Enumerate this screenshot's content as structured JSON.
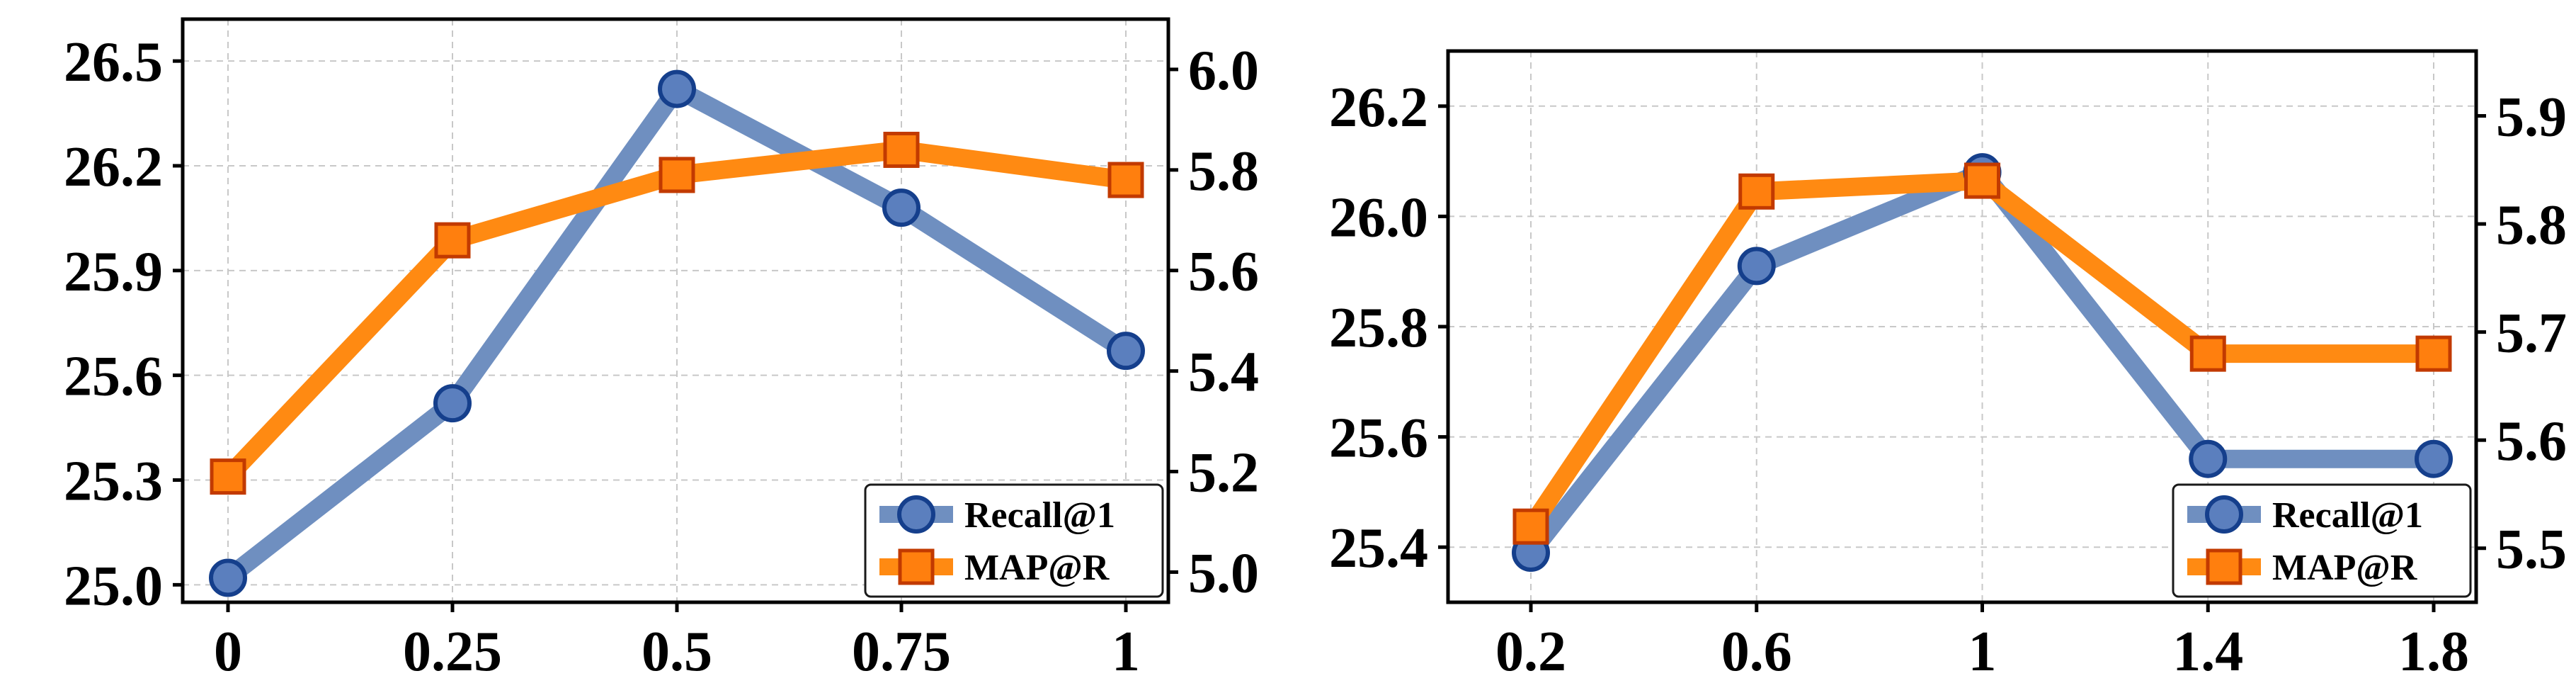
{
  "colors": {
    "recall": "#6f8fc0",
    "recall_marker_fill": "#5b7fbe",
    "recall_marker_edge": "#153f8c",
    "map": "#ff8a12",
    "map_marker_fill": "#ff7f0e",
    "map_marker_edge": "#c23a00",
    "grid": "#c8c8c8",
    "axes": "#000000"
  },
  "chart_data": [
    {
      "type": "line",
      "title": "",
      "xlabel": "",
      "ylabel": "",
      "ylabel_right": "",
      "categories": [
        "0",
        "0.25",
        "0.5",
        "0.75",
        "1"
      ],
      "ylim": [
        24.95,
        26.62
      ],
      "ylim_right": [
        4.94,
        6.1
      ],
      "yticks": [
        "25.0",
        "25.3",
        "25.6",
        "25.9",
        "26.2",
        "26.5"
      ],
      "yticks_right": [
        "5.0",
        "5.2",
        "5.4",
        "5.6",
        "5.8",
        "6.0"
      ],
      "grid": true,
      "legend_position": "bottom-right",
      "series": [
        {
          "name": "Recall@1",
          "axis": "left",
          "marker": "circle",
          "values": [
            25.02,
            25.52,
            26.42,
            26.08,
            25.67
          ]
        },
        {
          "name": "MAP@R",
          "axis": "right",
          "marker": "square",
          "values": [
            5.19,
            5.66,
            5.79,
            5.84,
            5.78
          ]
        }
      ]
    },
    {
      "type": "line",
      "title": "",
      "xlabel": "",
      "ylabel": "",
      "ylabel_right": "",
      "categories": [
        "0.2",
        "0.6",
        "1",
        "1.4",
        "1.8"
      ],
      "ylim": [
        25.3,
        26.3
      ],
      "ylim_right": [
        5.45,
        5.96
      ],
      "yticks": [
        "25.4",
        "25.6",
        "25.8",
        "26.0",
        "26.2"
      ],
      "yticks_right": [
        "5.5",
        "5.6",
        "5.7",
        "5.8",
        "5.9"
      ],
      "grid": true,
      "legend_position": "bottom-right",
      "series": [
        {
          "name": "Recall@1",
          "axis": "left",
          "marker": "circle",
          "values": [
            25.39,
            25.91,
            26.08,
            25.56,
            25.56
          ]
        },
        {
          "name": "MAP@R",
          "axis": "right",
          "marker": "square",
          "values": [
            5.52,
            5.83,
            5.84,
            5.68,
            5.68
          ]
        }
      ]
    }
  ]
}
